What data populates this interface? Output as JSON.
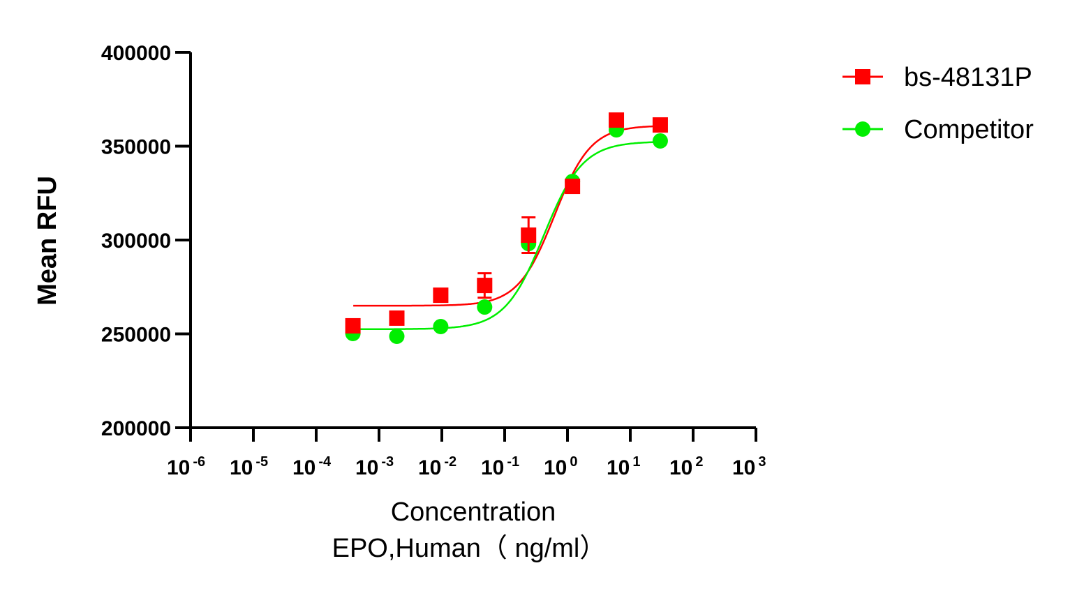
{
  "chart_data": {
    "type": "scatter",
    "title": "",
    "xlabel_line1": "Concentration",
    "xlabel_line2": "EPO,Human（ ng/ml）",
    "ylabel": "Mean RFU",
    "xscale": "log",
    "xlim_log10": [
      -6,
      3
    ],
    "ylim": [
      200000,
      400000
    ],
    "yticks": [
      "200000",
      "250000",
      "300000",
      "350000",
      "400000"
    ],
    "xtick_exponents": [
      "-6",
      "-5",
      "-4",
      "-3",
      "-2",
      "-1",
      "0",
      "1",
      "2",
      "3"
    ],
    "xtick_base": "10",
    "legend_position": "top-right",
    "series": [
      {
        "name": "bs-48131P",
        "color": "#ff0000",
        "marker": "square",
        "x": [
          0.000384,
          0.00192,
          0.0096,
          0.048,
          0.24,
          1.2,
          6,
          30
        ],
        "y": [
          254300,
          258400,
          270600,
          275800,
          302600,
          328600,
          363900,
          361300
        ],
        "error": [
          0,
          0,
          0,
          6500,
          9500,
          0,
          0,
          0
        ],
        "fit": {
          "bottom": 265000,
          "top": 361000,
          "ec50": 0.62,
          "hill": 1.5
        }
      },
      {
        "name": "Competitor",
        "color": "#00ee00",
        "marker": "circle",
        "x": [
          0.000384,
          0.00192,
          0.0096,
          0.048,
          0.24,
          1.2,
          6,
          30
        ],
        "y": [
          250200,
          248700,
          253900,
          264300,
          298100,
          331200,
          358700,
          352800
        ],
        "error": [
          0,
          0,
          0,
          0,
          0,
          0,
          0,
          0
        ],
        "fit": {
          "bottom": 252500,
          "top": 352500,
          "ec50": 0.42,
          "hill": 1.4
        }
      }
    ]
  }
}
